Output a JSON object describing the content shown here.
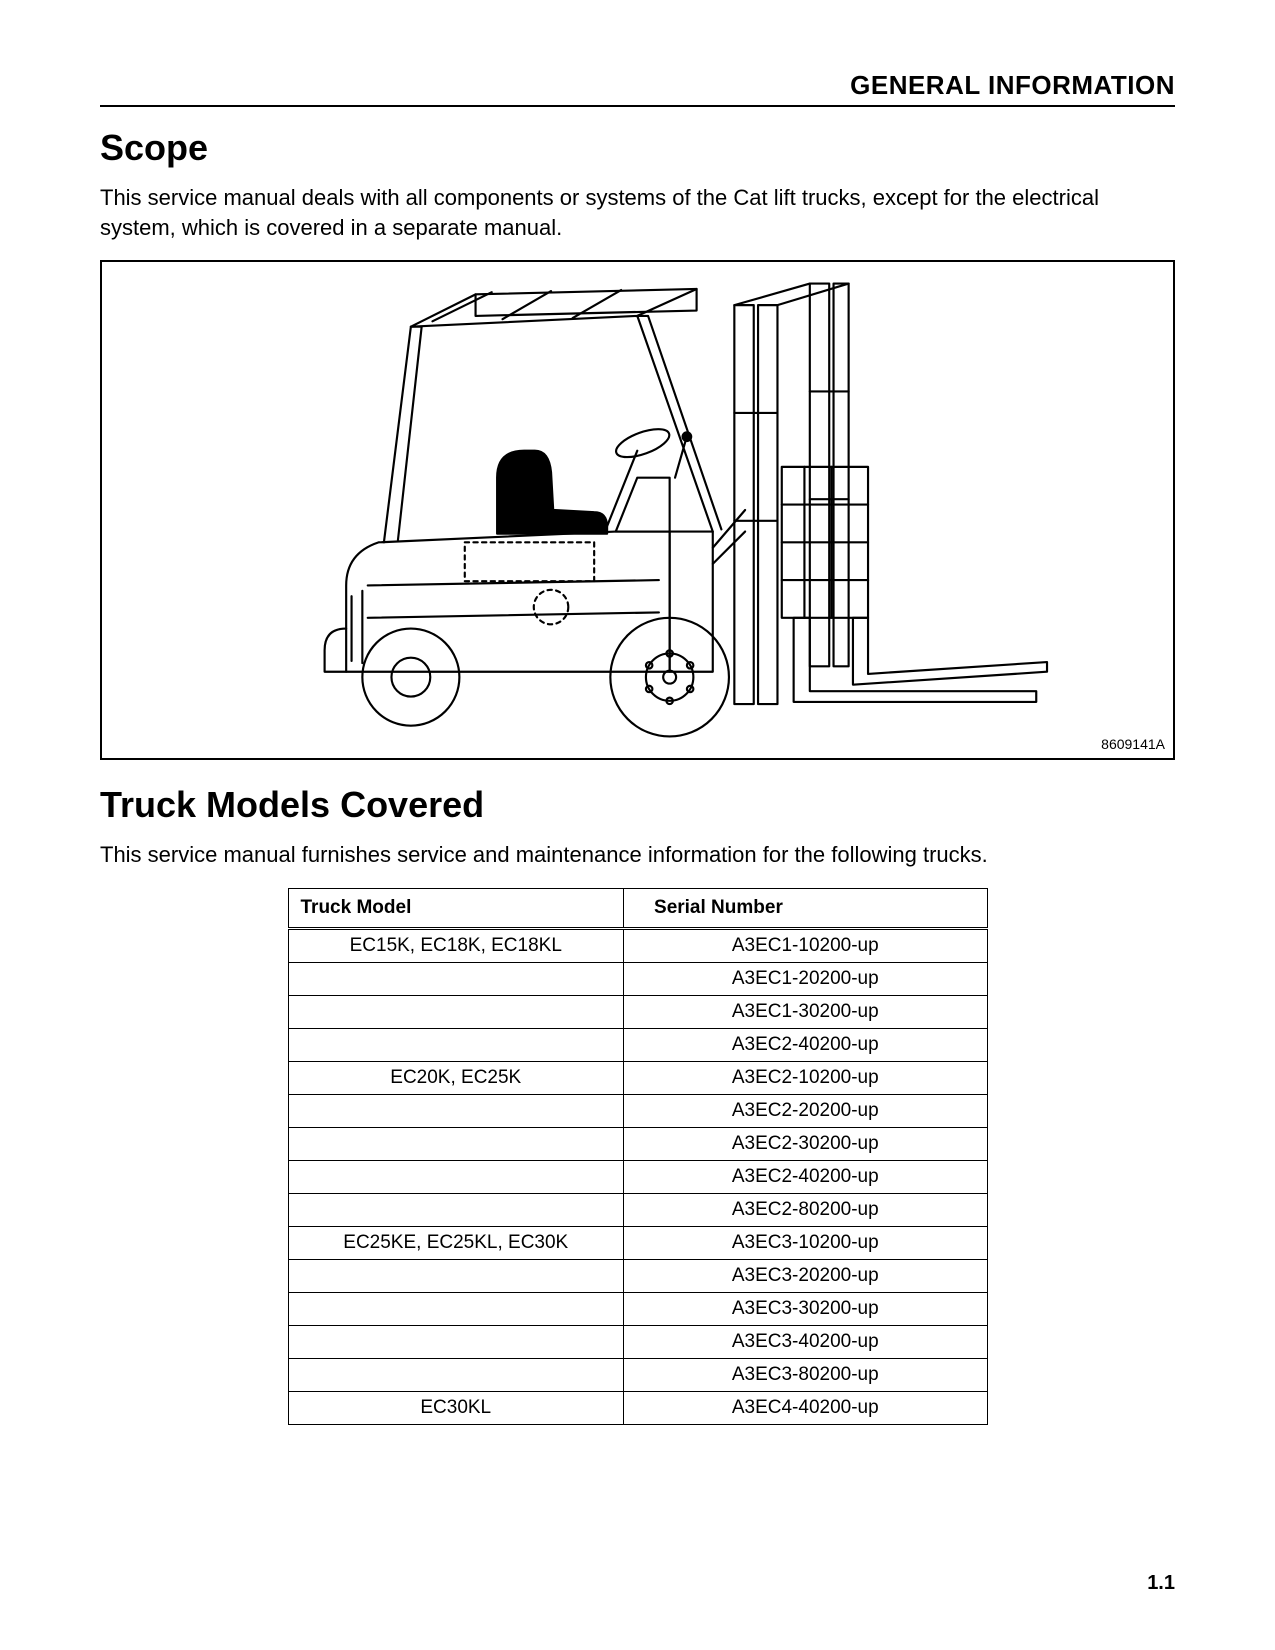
{
  "header": {
    "title": "GENERAL INFORMATION"
  },
  "sections": {
    "scope": {
      "heading": "Scope",
      "paragraph": "This service manual deals with all components or systems of the Cat lift trucks, except for the electrical system, which is covered in a separate manual."
    },
    "models": {
      "heading": "Truck Models Covered",
      "paragraph": "This service manual furnishes service and maintenance information for the following trucks."
    }
  },
  "figure": {
    "id_label": "8609141A",
    "stroke": "#000000",
    "fill": "#ffffff"
  },
  "table": {
    "columns": [
      "Truck Model",
      "Serial Number"
    ],
    "col_widths_pct": [
      48,
      52
    ],
    "header_fontsize": 19,
    "cell_fontsize": 19,
    "border_color": "#000000",
    "rows": [
      [
        "EC15K, EC18K, EC18KL",
        "A3EC1-10200-up"
      ],
      [
        "",
        "A3EC1-20200-up"
      ],
      [
        "",
        "A3EC1-30200-up"
      ],
      [
        "",
        "A3EC2-40200-up"
      ],
      [
        "EC20K, EC25K",
        "A3EC2-10200-up"
      ],
      [
        "",
        "A3EC2-20200-up"
      ],
      [
        "",
        "A3EC2-30200-up"
      ],
      [
        "",
        "A3EC2-40200-up"
      ],
      [
        "",
        "A3EC2-80200-up"
      ],
      [
        "EC25KE, EC25KL, EC30K",
        "A3EC3-10200-up"
      ],
      [
        "",
        "A3EC3-20200-up"
      ],
      [
        "",
        "A3EC3-30200-up"
      ],
      [
        "",
        "A3EC3-40200-up"
      ],
      [
        "",
        "A3EC3-80200-up"
      ],
      [
        "EC30KL",
        "A3EC4-40200-up"
      ]
    ]
  },
  "page_number": "1.1",
  "colors": {
    "text": "#000000",
    "background": "#ffffff",
    "border": "#000000"
  },
  "typography": {
    "header_title_pt": 26,
    "section_heading_pt": 36,
    "body_pt": 22,
    "table_pt": 19,
    "figure_id_pt": 14,
    "page_number_pt": 20
  }
}
